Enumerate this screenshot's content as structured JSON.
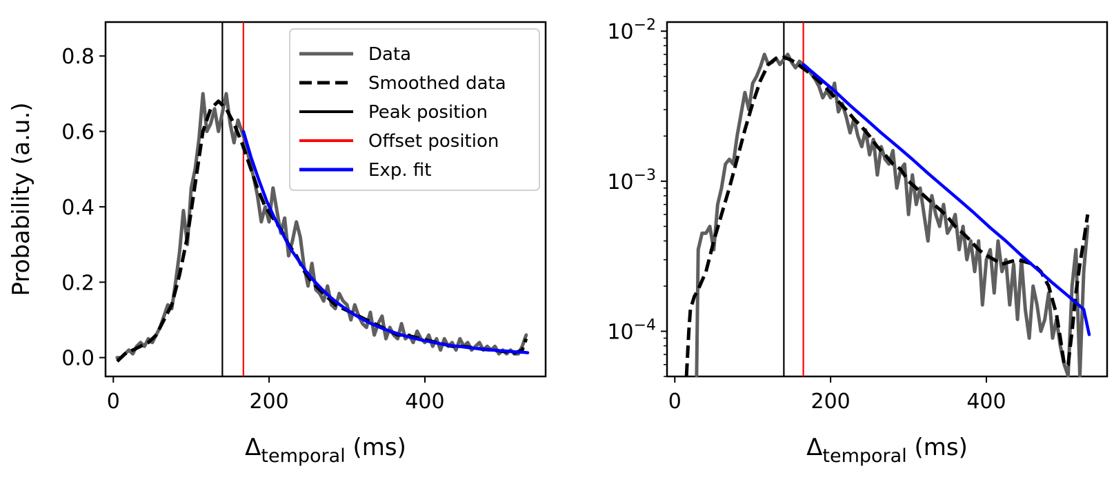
{
  "chart_data": [
    {
      "type": "line",
      "yscale": "linear",
      "xlabel_main": "Δ",
      "xlabel_sub": "temporal",
      "xlabel_unit": " (ms)",
      "ylabel": "Probability (a.u.)",
      "xlim": [
        -10,
        555
      ],
      "ylim": [
        -0.05,
        0.89
      ],
      "xticks": [
        0,
        200,
        400
      ],
      "xtick_labels": [
        "0",
        "200",
        "400"
      ],
      "yticks": [
        0.0,
        0.2,
        0.4,
        0.6,
        0.8
      ],
      "ytick_labels": [
        "0.0",
        "0.2",
        "0.4",
        "0.6",
        "0.8"
      ],
      "legend_position": "top-right",
      "legend": [
        {
          "label": "Data",
          "color": "#5f5f5f",
          "style": "solid"
        },
        {
          "label": "Smoothed data",
          "color": "#000000",
          "style": "dashed"
        },
        {
          "label": "Peak position",
          "color": "#000000",
          "style": "solid-thin"
        },
        {
          "label": "Offset position",
          "color": "#ff0000",
          "style": "solid-thin"
        },
        {
          "label": "Exp. fit",
          "color": "#0000ff",
          "style": "solid"
        }
      ],
      "vlines": [
        {
          "x": 140,
          "color": "#000000"
        },
        {
          "x": 167,
          "color": "#ff0000"
        }
      ],
      "series": [
        {
          "role": "data",
          "color": "#5f5f5f",
          "x": [
            5,
            10,
            15,
            20,
            25,
            30,
            35,
            40,
            45,
            50,
            55,
            60,
            65,
            70,
            75,
            80,
            85,
            90,
            95,
            100,
            105,
            110,
            115,
            120,
            125,
            130,
            135,
            140,
            145,
            150,
            155,
            160,
            165,
            170,
            175,
            180,
            185,
            190,
            195,
            200,
            205,
            210,
            215,
            220,
            225,
            230,
            235,
            240,
            245,
            250,
            255,
            260,
            265,
            270,
            275,
            280,
            285,
            290,
            295,
            300,
            305,
            310,
            315,
            320,
            325,
            330,
            335,
            340,
            345,
            350,
            355,
            360,
            365,
            370,
            375,
            380,
            385,
            390,
            395,
            400,
            405,
            410,
            415,
            420,
            425,
            430,
            435,
            440,
            445,
            450,
            455,
            460,
            465,
            470,
            475,
            480,
            485,
            490,
            495,
            500,
            505,
            510,
            515,
            520,
            525,
            530
          ],
          "y": [
            0.0,
            0.0,
            0.01,
            0.02,
            0.01,
            0.03,
            0.04,
            0.03,
            0.05,
            0.04,
            0.06,
            0.08,
            0.11,
            0.14,
            0.13,
            0.2,
            0.28,
            0.39,
            0.3,
            0.45,
            0.5,
            0.58,
            0.7,
            0.6,
            0.62,
            0.66,
            0.6,
            0.65,
            0.7,
            0.62,
            0.57,
            0.63,
            0.6,
            0.57,
            0.52,
            0.48,
            0.43,
            0.36,
            0.4,
            0.36,
            0.45,
            0.39,
            0.33,
            0.37,
            0.27,
            0.31,
            0.36,
            0.32,
            0.24,
            0.19,
            0.25,
            0.18,
            0.17,
            0.15,
            0.19,
            0.14,
            0.13,
            0.17,
            0.15,
            0.14,
            0.1,
            0.14,
            0.11,
            0.09,
            0.08,
            0.12,
            0.06,
            0.09,
            0.11,
            0.05,
            0.08,
            0.06,
            0.05,
            0.09,
            0.05,
            0.06,
            0.04,
            0.07,
            0.05,
            0.04,
            0.06,
            0.03,
            0.05,
            0.02,
            0.05,
            0.03,
            0.04,
            0.02,
            0.05,
            0.03,
            0.04,
            0.02,
            0.03,
            0.04,
            0.02,
            0.03,
            0.02,
            0.03,
            0.01,
            0.02,
            0.01,
            0.02,
            0.01,
            0.01,
            0.03,
            0.06
          ]
        },
        {
          "role": "smoothed",
          "color": "#000000",
          "x": [
            5,
            15,
            25,
            35,
            45,
            55,
            65,
            75,
            85,
            95,
            105,
            115,
            125,
            135,
            140,
            145,
            155,
            165,
            175,
            185,
            195,
            205,
            215,
            225,
            235,
            245,
            255,
            265,
            275,
            285,
            295,
            305,
            315,
            325,
            335,
            345,
            355,
            365,
            375,
            385,
            395,
            405,
            415,
            425,
            435,
            445,
            455,
            465,
            475,
            485,
            495,
            505,
            515,
            525,
            530
          ],
          "y": [
            -0.01,
            0.01,
            0.02,
            0.03,
            0.04,
            0.06,
            0.1,
            0.14,
            0.22,
            0.32,
            0.46,
            0.6,
            0.66,
            0.68,
            0.67,
            0.66,
            0.62,
            0.57,
            0.51,
            0.45,
            0.4,
            0.37,
            0.34,
            0.3,
            0.27,
            0.23,
            0.2,
            0.18,
            0.16,
            0.14,
            0.13,
            0.12,
            0.11,
            0.1,
            0.09,
            0.08,
            0.07,
            0.06,
            0.06,
            0.055,
            0.05,
            0.045,
            0.04,
            0.035,
            0.03,
            0.03,
            0.028,
            0.025,
            0.022,
            0.02,
            0.018,
            0.015,
            0.012,
            0.02,
            0.05
          ]
        },
        {
          "role": "fit",
          "color": "#0000ff",
          "x": [
            167,
            177,
            187,
            197,
            207,
            217,
            227,
            237,
            247,
            257,
            267,
            277,
            287,
            297,
            307,
            317,
            327,
            337,
            347,
            357,
            367,
            377,
            387,
            397,
            407,
            417,
            427,
            437,
            447,
            457,
            467,
            477,
            487,
            497,
            507,
            517,
            527,
            532
          ],
          "y": [
            0.6,
            0.53,
            0.47,
            0.415,
            0.37,
            0.33,
            0.29,
            0.26,
            0.23,
            0.205,
            0.183,
            0.163,
            0.146,
            0.131,
            0.117,
            0.105,
            0.094,
            0.085,
            0.076,
            0.069,
            0.062,
            0.056,
            0.051,
            0.046,
            0.042,
            0.038,
            0.034,
            0.031,
            0.029,
            0.026,
            0.024,
            0.022,
            0.02,
            0.018,
            0.017,
            0.015,
            0.014,
            0.013
          ]
        }
      ]
    },
    {
      "type": "line",
      "yscale": "log",
      "xlabel_main": "Δ",
      "xlabel_sub": "temporal",
      "xlabel_unit": " (ms)",
      "ylabel": "",
      "xlim": [
        -10,
        555
      ],
      "ylim": [
        5e-05,
        0.0115
      ],
      "xticks": [
        0,
        200,
        400
      ],
      "xtick_labels": [
        "0",
        "200",
        "400"
      ],
      "yticks": [
        0.0001,
        0.001,
        0.01
      ],
      "ytick_labels": [
        {
          "base": "10",
          "exp": "−4"
        },
        {
          "base": "10",
          "exp": "−3"
        },
        {
          "base": "10",
          "exp": "−2"
        }
      ],
      "vlines": [
        {
          "x": 140,
          "color": "#000000"
        },
        {
          "x": 165,
          "color": "#ff0000"
        }
      ],
      "series": [
        {
          "role": "data",
          "color": "#5f5f5f",
          "x": [
            28,
            30,
            35,
            40,
            45,
            50,
            55,
            60,
            65,
            70,
            75,
            80,
            85,
            90,
            95,
            100,
            105,
            110,
            115,
            120,
            125,
            130,
            135,
            140,
            145,
            150,
            155,
            160,
            165,
            170,
            175,
            180,
            185,
            190,
            195,
            200,
            205,
            210,
            215,
            220,
            225,
            230,
            235,
            240,
            245,
            250,
            255,
            260,
            265,
            270,
            275,
            280,
            285,
            290,
            295,
            300,
            305,
            310,
            315,
            320,
            325,
            330,
            335,
            340,
            345,
            350,
            355,
            360,
            365,
            370,
            375,
            380,
            385,
            390,
            395,
            400,
            405,
            410,
            415,
            420,
            425,
            430,
            435,
            440,
            445,
            450,
            455,
            460,
            465,
            470,
            475,
            480,
            485,
            490,
            495,
            500,
            505,
            510,
            515,
            520,
            525,
            530
          ],
          "y": [
            5e-05,
            0.00035,
            0.00045,
            0.00045,
            0.0005,
            0.00035,
            0.0007,
            0.0009,
            0.0013,
            0.0014,
            0.0013,
            0.002,
            0.0028,
            0.0039,
            0.003,
            0.0045,
            0.005,
            0.0058,
            0.007,
            0.006,
            0.0062,
            0.0066,
            0.006,
            0.0065,
            0.007,
            0.0062,
            0.0057,
            0.0063,
            0.006,
            0.0057,
            0.0052,
            0.0048,
            0.0043,
            0.0036,
            0.004,
            0.0036,
            0.0045,
            0.0029,
            0.0033,
            0.0027,
            0.0021,
            0.0026,
            0.002,
            0.0017,
            0.0022,
            0.0015,
            0.0019,
            0.0011,
            0.0017,
            0.0014,
            0.0013,
            0.0016,
            0.0009,
            0.0012,
            0.0013,
            0.0006,
            0.0011,
            0.0007,
            0.0009,
            0.0006,
            0.0004,
            0.0008,
            0.0006,
            0.0005,
            0.0007,
            0.00045,
            0.0005,
            0.0006,
            0.00035,
            0.0005,
            0.0003,
            0.0004,
            0.00025,
            0.0004,
            0.00015,
            0.0003,
            0.00035,
            0.00018,
            0.0004,
            0.00025,
            0.0003,
            0.00015,
            0.00028,
            0.00012,
            0.0003,
            0.00014,
            9e-05,
            0.0002,
            0.00015,
            0.0001,
            0.00012,
            0.00018,
            9e-05,
            0.00012,
            8e-05,
            6e-05,
            5e-05,
            0.0002,
            0.00035,
            5e-05,
            0.00025,
            0.0005
          ]
        },
        {
          "role": "smoothed",
          "color": "#000000",
          "x": [
            15,
            18,
            20,
            25,
            30,
            40,
            50,
            60,
            70,
            80,
            90,
            100,
            110,
            120,
            130,
            140,
            150,
            160,
            170,
            180,
            190,
            200,
            210,
            220,
            230,
            240,
            250,
            260,
            270,
            280,
            290,
            300,
            310,
            320,
            330,
            340,
            350,
            360,
            370,
            380,
            390,
            400,
            410,
            420,
            430,
            440,
            450,
            460,
            470,
            480,
            490,
            495,
            500,
            505,
            510,
            515,
            520,
            525,
            530
          ],
          "y": [
            5e-05,
            0.0001,
            0.00014,
            0.00017,
            0.00019,
            0.00025,
            0.0004,
            0.0006,
            0.0009,
            0.0014,
            0.0022,
            0.0033,
            0.0047,
            0.006,
            0.0066,
            0.0067,
            0.0064,
            0.0059,
            0.0054,
            0.0049,
            0.0044,
            0.0039,
            0.0034,
            0.003,
            0.0026,
            0.0023,
            0.002,
            0.0017,
            0.0015,
            0.0013,
            0.0012,
            0.001,
            0.0009,
            0.0008,
            0.00072,
            0.00065,
            0.00058,
            0.0005,
            0.00045,
            0.0004,
            0.00035,
            0.00032,
            0.0003,
            0.00028,
            0.00029,
            0.0003,
            0.00029,
            0.00028,
            0.00025,
            0.0002,
            0.00013,
            9e-05,
            6e-05,
            6e-05,
            0.0001,
            0.00018,
            0.00028,
            0.0004,
            0.0006
          ]
        },
        {
          "role": "fit",
          "color": "#0000ff",
          "x": [
            165,
            185,
            205,
            225,
            245,
            265,
            285,
            305,
            325,
            345,
            365,
            385,
            405,
            425,
            445,
            465,
            485,
            505,
            525,
            532
          ],
          "y": [
            0.006,
            0.0049,
            0.004,
            0.0032,
            0.0026,
            0.0021,
            0.00172,
            0.0014,
            0.00113,
            0.00092,
            0.00075,
            0.00061,
            0.00049,
            0.0004,
            0.00032,
            0.00026,
            0.00021,
            0.000172,
            0.00014,
            9.5e-05
          ]
        }
      ]
    }
  ]
}
